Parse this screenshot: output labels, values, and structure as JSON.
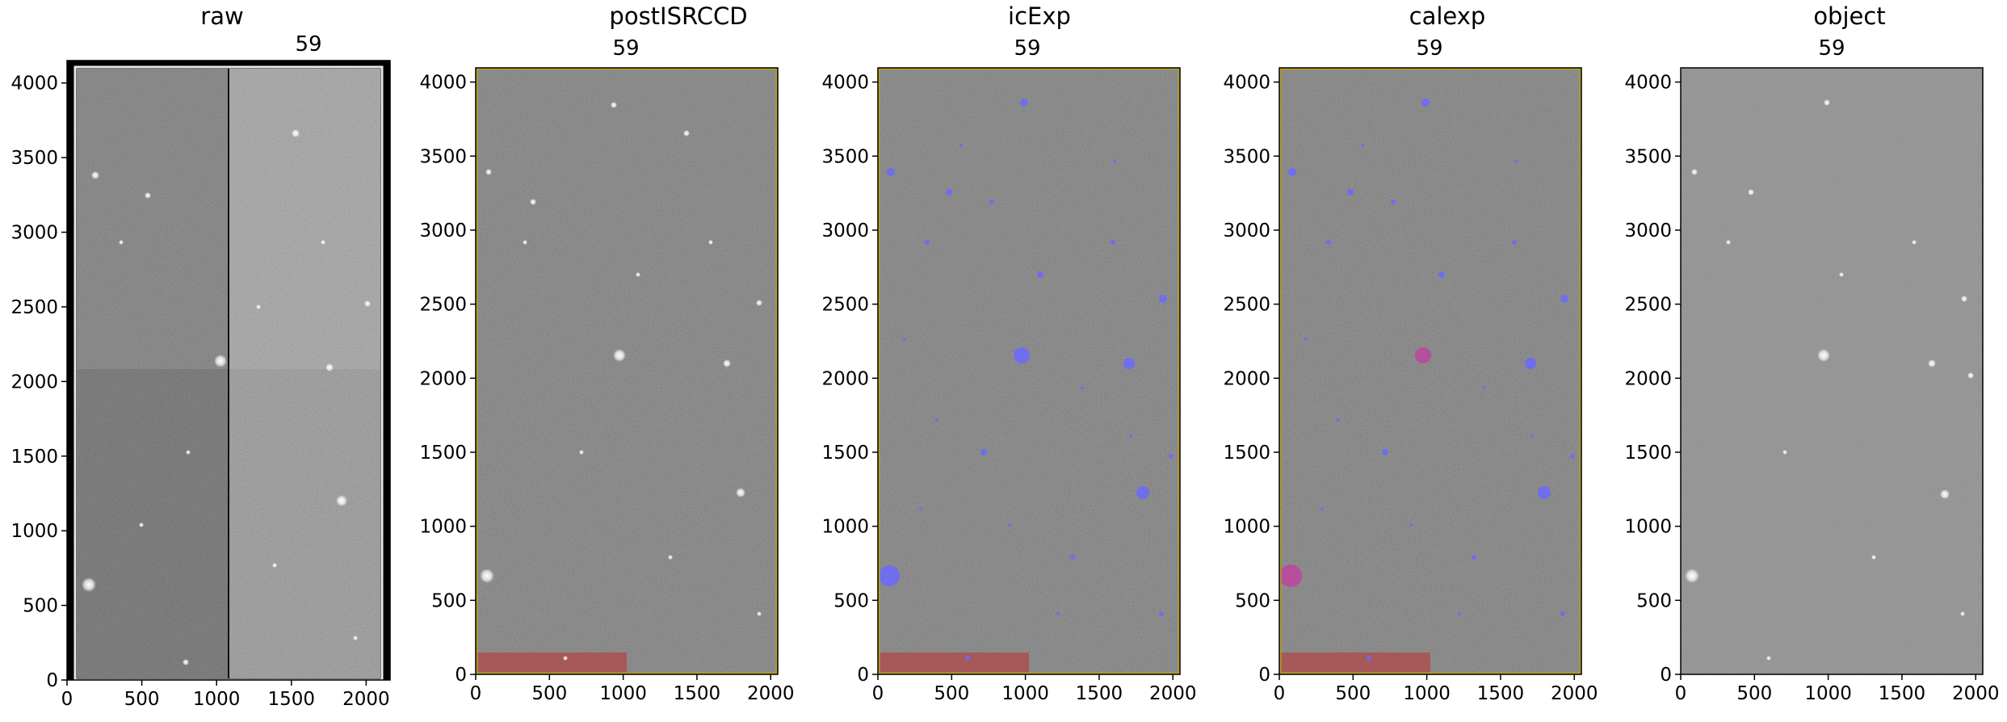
{
  "figure": {
    "panels": [
      {
        "id": "raw",
        "title": "raw",
        "subtitle": "59",
        "xticks": [
          0,
          500,
          1000,
          1500,
          2000
        ],
        "yticks": [
          0,
          500,
          1000,
          1500,
          2000,
          2500,
          3000,
          3500,
          4000
        ],
        "xlim": [
          0,
          2160
        ],
        "ylim": [
          0,
          4150
        ],
        "image": "raw-ccd-with-overscan-four-amplifiers",
        "overlays": []
      },
      {
        "id": "postISRCCD",
        "title": "postISRCCD",
        "subtitle": "59",
        "xticks": [
          0,
          500,
          1000,
          1500,
          2000
        ],
        "yticks": [
          0,
          500,
          1000,
          1500,
          2000,
          2500,
          3000,
          3500,
          4000
        ],
        "xlim": [
          0,
          2048
        ],
        "ylim": [
          0,
          4096
        ],
        "image": "isr-corrected-ccd",
        "overlays": [
          "bad-column-mask-red",
          "edge-mask-yellow"
        ]
      },
      {
        "id": "icExp",
        "title": "icExp",
        "subtitle": "59",
        "xticks": [
          0,
          500,
          1000,
          1500,
          2000
        ],
        "yticks": [
          0,
          500,
          1000,
          1500,
          2000,
          2500,
          3000,
          3500,
          4000
        ],
        "xlim": [
          0,
          2048
        ],
        "ylim": [
          0,
          4096
        ],
        "image": "calibrated-exposure",
        "overlays": [
          "detection-mask-blue",
          "bad-column-mask-red",
          "edge-mask-yellow"
        ]
      },
      {
        "id": "calexp",
        "title": "calexp",
        "subtitle": "59",
        "xticks": [
          0,
          500,
          1000,
          1500,
          2000
        ],
        "yticks": [
          0,
          500,
          1000,
          1500,
          2000,
          2500,
          3000,
          3500,
          4000
        ],
        "xlim": [
          0,
          2048
        ],
        "ylim": [
          0,
          4096
        ],
        "image": "calibrated-exposure",
        "overlays": [
          "detection-mask-blue",
          "bright-object-mask-magenta",
          "bad-column-mask-red",
          "edge-mask-yellow"
        ]
      },
      {
        "id": "object",
        "title": "object",
        "subtitle": "59",
        "xticks": [
          0,
          500,
          1000,
          1500,
          2000
        ],
        "yticks": [
          0,
          500,
          1000,
          1500,
          2000,
          2500,
          3000,
          3500,
          4000
        ],
        "xlim": [
          0,
          2048
        ],
        "ylim": [
          0,
          4096
        ],
        "image": "object-image",
        "overlays": []
      }
    ],
    "colors": {
      "detection_mask": "#6a6aff",
      "bad_column_mask": "#c03030",
      "edge_mask": "#b8a020",
      "bright_object_mask": "#c040a0",
      "background_dark": "#2a2a2a",
      "background_mid": "#5a5a5a",
      "background_light": "#8a8a8a"
    }
  },
  "chart_data": [
    {
      "type": "heatmap",
      "title": "raw",
      "subtitle": "59",
      "xlim": [
        0,
        2160
      ],
      "ylim": [
        0,
        4150
      ],
      "xticks": [
        0,
        500,
        1000,
        1500,
        2000
      ],
      "yticks": [
        0,
        500,
        1000,
        1500,
        2000,
        2500,
        3000,
        3500,
        4000
      ]
    },
    {
      "type": "heatmap",
      "title": "postISRCCD",
      "subtitle": "59",
      "xlim": [
        0,
        2048
      ],
      "ylim": [
        0,
        4096
      ],
      "xticks": [
        0,
        500,
        1000,
        1500,
        2000
      ],
      "yticks": [
        0,
        500,
        1000,
        1500,
        2000,
        2500,
        3000,
        3500,
        4000
      ]
    },
    {
      "type": "heatmap",
      "title": "icExp",
      "subtitle": "59",
      "xlim": [
        0,
        2048
      ],
      "ylim": [
        0,
        4096
      ],
      "xticks": [
        0,
        500,
        1000,
        1500,
        2000
      ],
      "yticks": [
        0,
        500,
        1000,
        1500,
        2000,
        2500,
        3000,
        3500,
        4000
      ]
    },
    {
      "type": "heatmap",
      "title": "calexp",
      "subtitle": "59",
      "xlim": [
        0,
        2048
      ],
      "ylim": [
        0,
        4096
      ],
      "xticks": [
        0,
        500,
        1000,
        1500,
        2000
      ],
      "yticks": [
        0,
        500,
        1000,
        1500,
        2000,
        2500,
        3000,
        3500,
        4000
      ]
    },
    {
      "type": "heatmap",
      "title": "object",
      "subtitle": "59",
      "xlim": [
        0,
        2048
      ],
      "ylim": [
        0,
        4096
      ],
      "xticks": [
        0,
        500,
        1000,
        1500,
        2000
      ],
      "yticks": [
        0,
        500,
        1000,
        1500,
        2000,
        2500,
        3000,
        3500,
        4000
      ]
    }
  ]
}
